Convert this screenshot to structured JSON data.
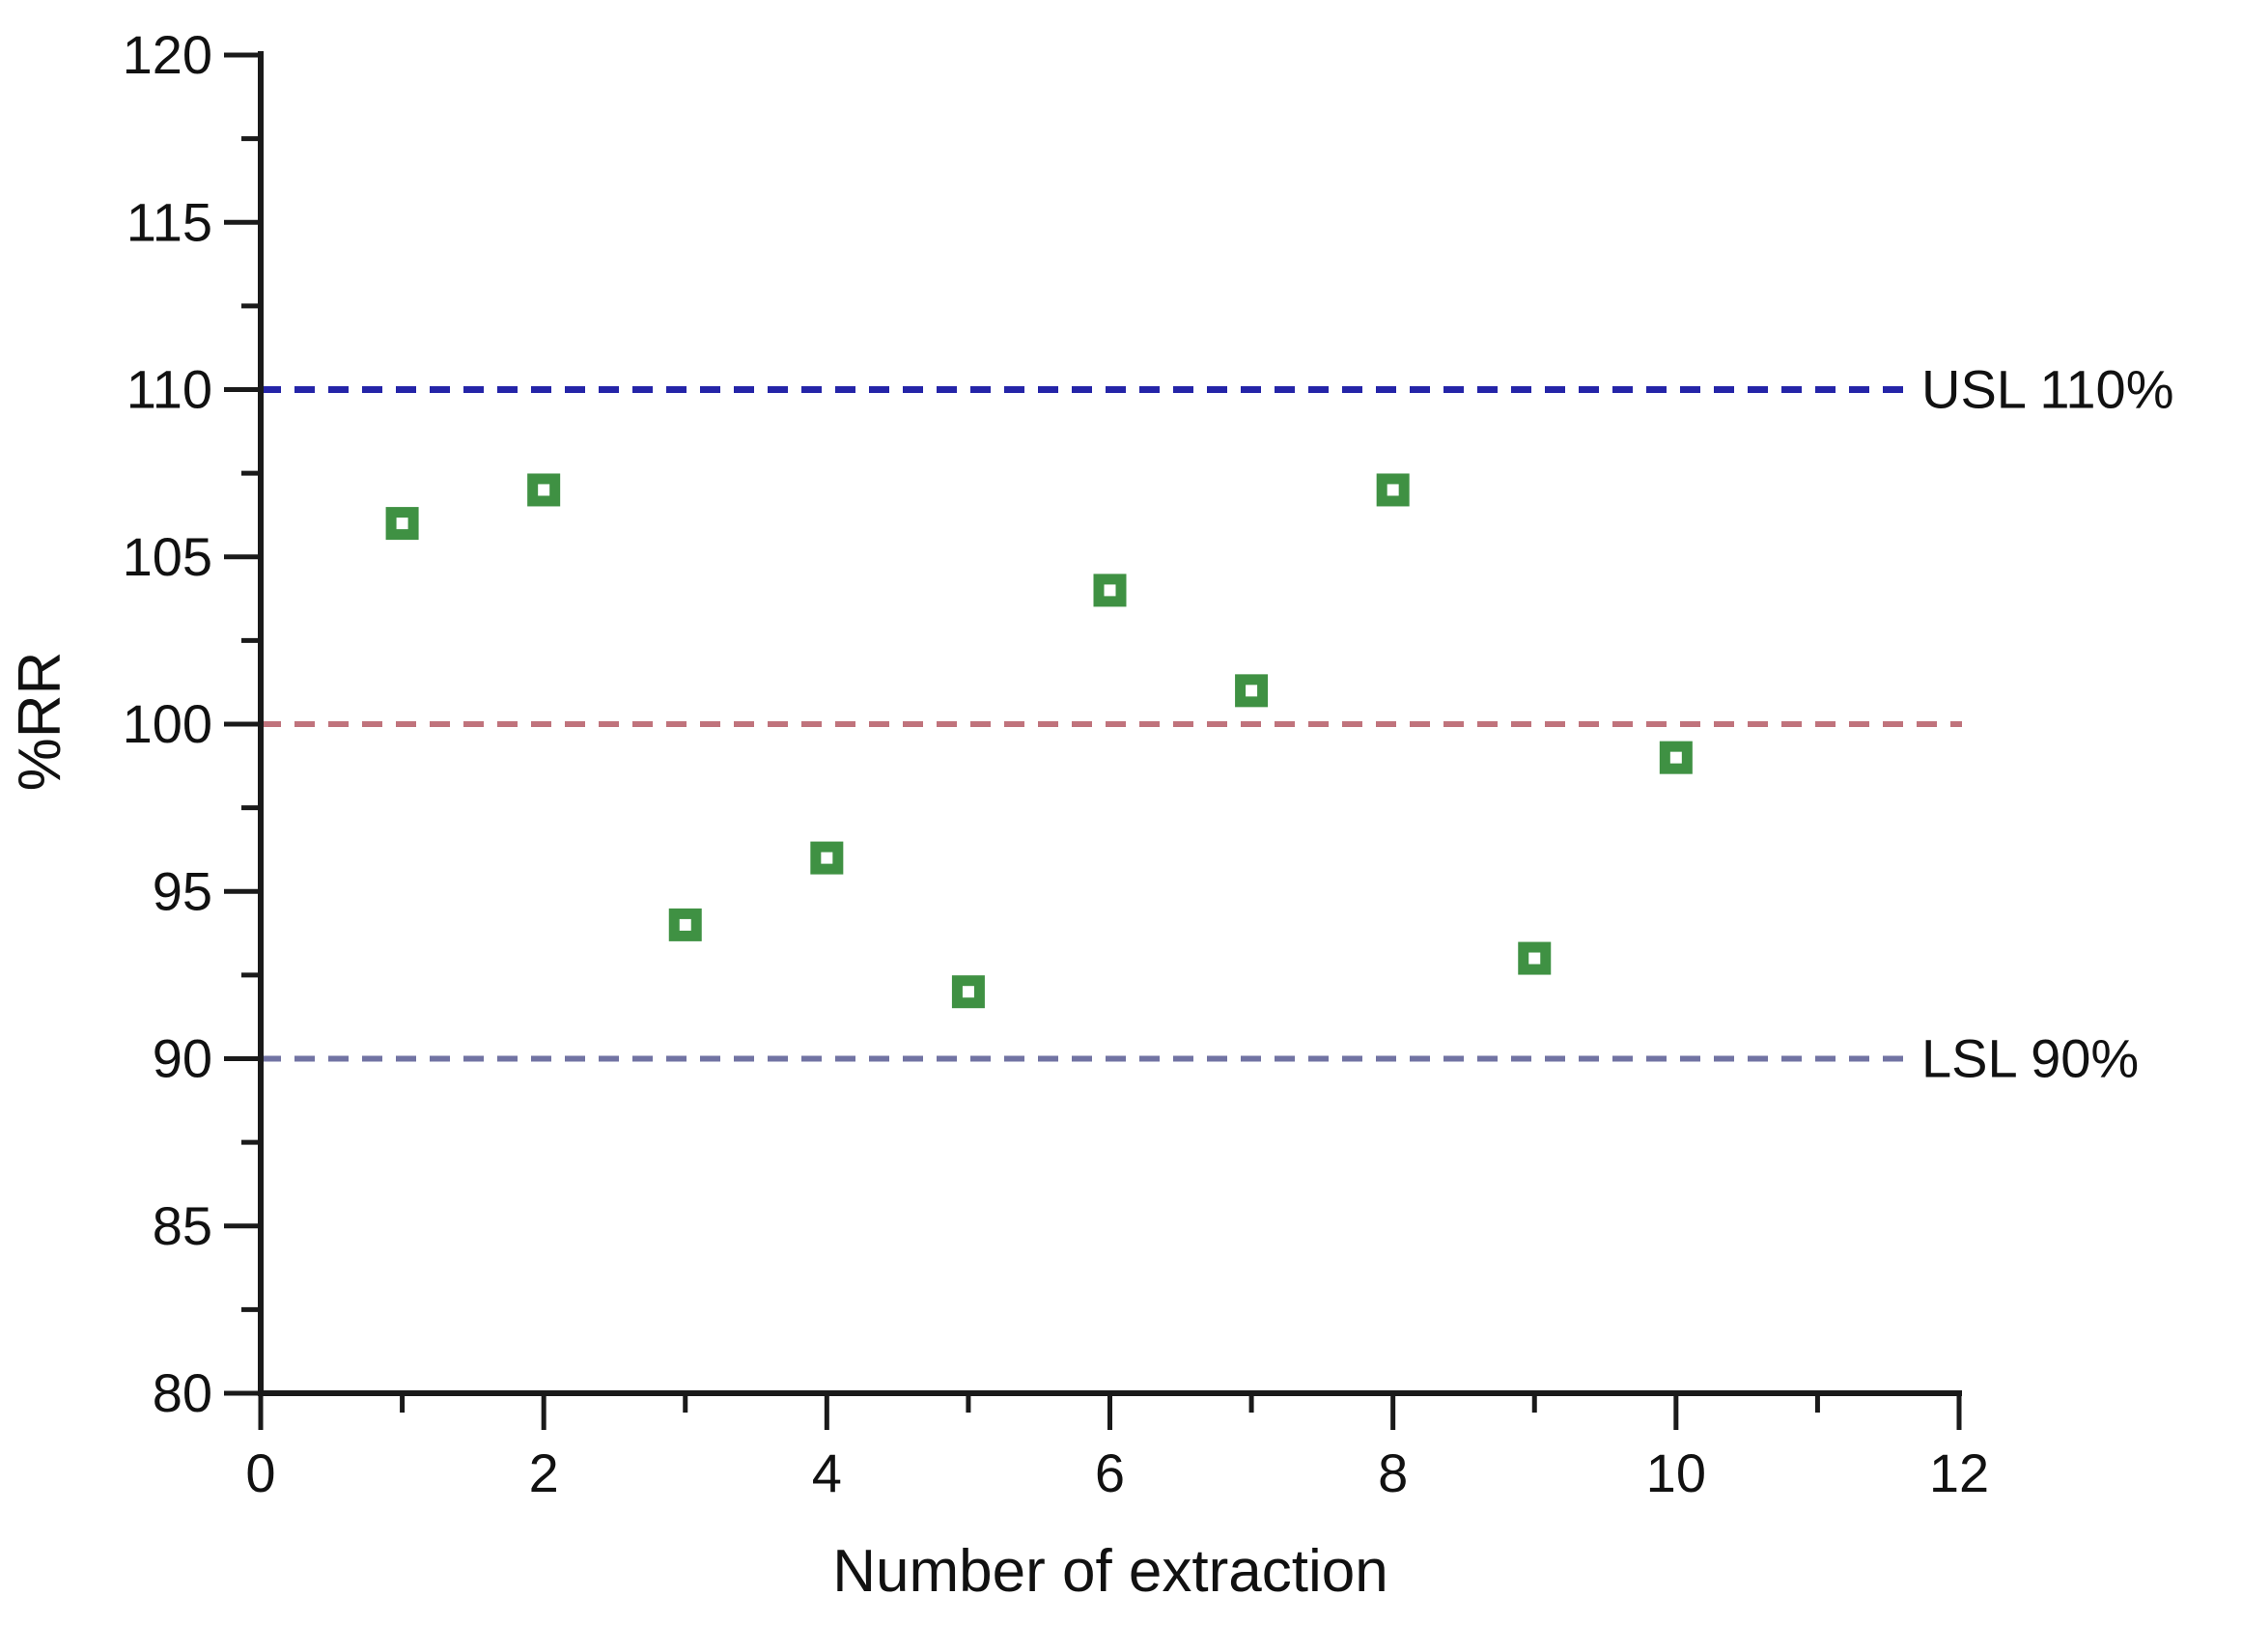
{
  "chart_data": {
    "type": "scatter",
    "title": "",
    "xlabel": "Number of extraction",
    "ylabel": "%RR",
    "xlim": [
      0,
      12
    ],
    "ylim": [
      80,
      120
    ],
    "x_major_ticks": [
      0,
      2,
      4,
      6,
      8,
      10,
      12
    ],
    "x_minor_ticks": [
      1,
      3,
      5,
      7,
      9,
      11
    ],
    "y_major_ticks": [
      80,
      85,
      90,
      95,
      100,
      105,
      110,
      115,
      120
    ],
    "y_minor_ticks": [
      82.5,
      87.5,
      92.5,
      97.5,
      102.5,
      107.5,
      112.5,
      117.5
    ],
    "grid": false,
    "legend": "none",
    "points": [
      {
        "x": 1,
        "y": 106
      },
      {
        "x": 2,
        "y": 107
      },
      {
        "x": 3,
        "y": 94
      },
      {
        "x": 4,
        "y": 96
      },
      {
        "x": 5,
        "y": 92
      },
      {
        "x": 6,
        "y": 104
      },
      {
        "x": 7,
        "y": 101
      },
      {
        "x": 8,
        "y": 107
      },
      {
        "x": 9,
        "y": 93
      },
      {
        "x": 10,
        "y": 99
      }
    ],
    "marker": {
      "shape": "open-square",
      "color": "#3f9143",
      "outer_size_px": 34,
      "border_px": 11
    },
    "reference_lines": [
      {
        "value": 110,
        "label": "USL 110%",
        "color": "#2424a8",
        "style": "dashed",
        "width": 7
      },
      {
        "value": 100,
        "label": "",
        "color": "#c0737c",
        "style": "dashed",
        "width": 6
      },
      {
        "value": 90,
        "label": "LSL 90%",
        "color": "#7173a3",
        "style": "dashed",
        "width": 6
      }
    ],
    "colors": {
      "axis": "#1a1a1a",
      "text": "#111111",
      "background": "#ffffff"
    }
  }
}
